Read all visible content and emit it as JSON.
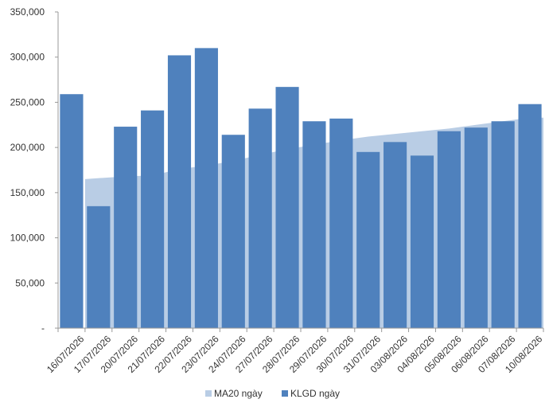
{
  "chart_data": {
    "type": "bar",
    "title": "",
    "xlabel": "",
    "ylabel": "",
    "ylim": [
      0,
      350000
    ],
    "y_ticks": [
      "-",
      "50,000",
      "100,000",
      "150,000",
      "200,000",
      "250,000",
      "300,000",
      "350,000"
    ],
    "grid": false,
    "legend_position": "bottom",
    "categories": [
      "16/07/2026",
      "17/07/2026",
      "20/07/2026",
      "21/07/2026",
      "22/07/2026",
      "23/07/2026",
      "24/07/2026",
      "27/07/2026",
      "28/07/2026",
      "29/07/2026",
      "30/07/2026",
      "31/07/2026",
      "03/08/2026",
      "04/08/2026",
      "05/08/2026",
      "06/08/2026",
      "07/08/2026",
      "10/08/2026"
    ],
    "series": [
      {
        "name": "MA20 ngày",
        "type": "area",
        "color": "#b9cde5",
        "values": [
          null,
          165000,
          168000,
          169000,
          176000,
          180000,
          185000,
          192000,
          198000,
          203000,
          208000,
          212000,
          215000,
          218000,
          221000,
          225000,
          229000,
          233000
        ]
      },
      {
        "name": "KLGD ngày",
        "type": "bar",
        "color": "#4f81bd",
        "values": [
          259000,
          135000,
          223000,
          241000,
          302000,
          310000,
          214000,
          243000,
          267000,
          229000,
          232000,
          195000,
          206000,
          191000,
          218000,
          222000,
          229000,
          248000
        ]
      }
    ]
  }
}
